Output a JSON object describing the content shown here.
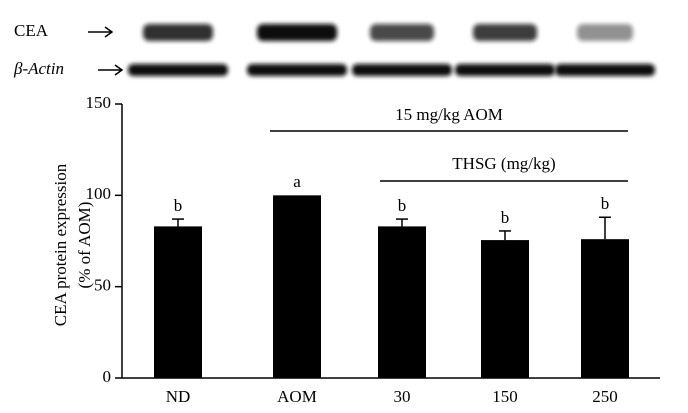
{
  "chart_data": {
    "type": "bar",
    "blot_labels": [
      "CEA",
      "β-Actin"
    ],
    "ylabel": [
      "CEA protein expression",
      "(% of AOM)"
    ],
    "annotations": [
      "15 mg/kg AOM",
      "THSG (mg/kg)"
    ],
    "categories": [
      "ND",
      "AOM",
      "30",
      "150",
      "250"
    ],
    "values": [
      83,
      100,
      83,
      75.5,
      76
    ],
    "errors": [
      4,
      null,
      4,
      5,
      12
    ],
    "letters": [
      "b",
      "a",
      "b",
      "b",
      "b"
    ],
    "color": "#000000",
    "ylim": [
      0,
      150
    ],
    "yticks": [
      0,
      50,
      100,
      150
    ]
  }
}
